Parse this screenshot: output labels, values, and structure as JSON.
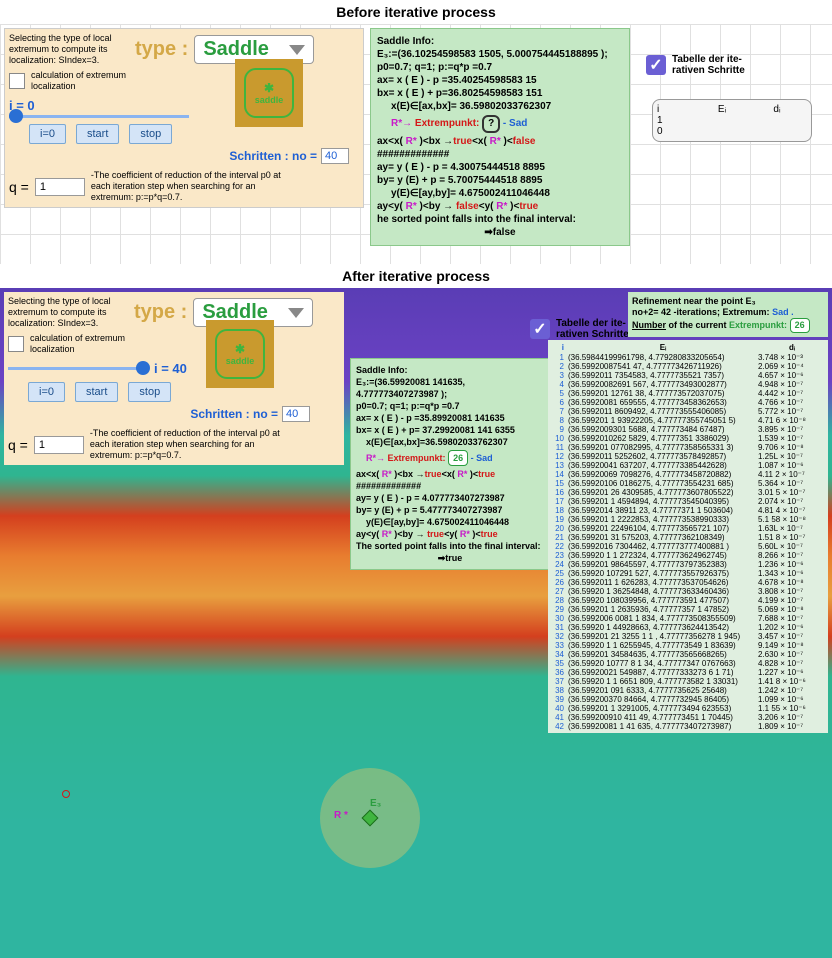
{
  "titles": {
    "before": "Before iterative process",
    "after": "After iterative process"
  },
  "leftPanel": {
    "selectText": "Selecting the type of local extremum to compute its localization: SIndex=3.",
    "typeLabel": "type :",
    "dropdownValue": "Saddle",
    "calcLabel": "calculation of extremum localization",
    "goldLabel": "saddle",
    "iLabelBefore": "i = 0",
    "iLabelAfter": "i = 40",
    "btns": {
      "reset": "i=0",
      "start": "start",
      "stop": "stop"
    },
    "schritten": "Schritten :  no = ",
    "schrittenVal": "40",
    "qLabel": "q = ",
    "qVal": "1",
    "coeffText": "-The coefficient of reduction of the interval p0 at each iteration step when searching for an extremum: p:=p*q=0.7."
  },
  "infoBefore": {
    "l1": "Saddle  Info:",
    "l2": "E₃:=(36.10254598583 1505, 5.000754445188895 );",
    "l3": "p0=0.7;  q=1;    p:=q*p =0.7",
    "l4": "ax= x ( E ) - p =35.40254598583 15",
    "l5": "bx= x ( E ) + p=36.80254598583 151",
    "l6": "x(E)∈[ax,bx]= 36.59802033762307",
    "l7a": "R*→",
    "l7b": "Extrempunkt:",
    "l7q": "?",
    "l7c": "- Sad",
    "l8": "ax<x( R* )<bx →true<x( R* )<false",
    "l9": "#############",
    "l10": "ay= y ( E ) - p = 4.30075444518 8895",
    "l11": "by= y (E) + p = 5.70075444518 8895",
    "l12": "y(E)∈[ay,by]= 4.675002411046448",
    "l13": "ay<y( R* )<by → false<y( R* )<true",
    "l14": "he sorted point falls into the final interval:",
    "l15": "➡false"
  },
  "tabelleLabel": "Tabelle der ite-rativen Schritte",
  "miniTable": {
    "hdr_i": "i",
    "hdr_E": "Eᵢ",
    "hdr_d": "dᵢ",
    "r1": "1",
    "r2": "0"
  },
  "refine": {
    "l1": "Refinement near the point E₃",
    "l2": "no+2=  42 -iterations;  Extremum:",
    "l2b": "Sad .",
    "l3a": "Number",
    "l3b": " of the current   ",
    "l3c": "Extrempunkt:",
    "l3v": "26"
  },
  "infoAfter": {
    "l1": "Saddle  Info:",
    "l2": "E₃:=(36.59920081 141635, 4.777773407273987 );",
    "l3": "p0=0.7;  q=1;    p:=q*p =0.7",
    "l4": "ax= x ( E ) - p =35.89920081 141635",
    "l5": "bx= x ( E ) + p= 37.29920081 141 6355",
    "l6": "x(E)∈[ax,bx]=36.59802033762307",
    "l7a": "R*→",
    "l7b": "Extrempunkt:",
    "l7v": "26",
    "l7c": "- Sad",
    "l8": "ax<x( R* )<bx →true<x( R* )<true",
    "l9": "#############",
    "l10": "ay= y ( E ) - p = 4.077773407273987",
    "l11": "by= y (E) + p = 5.477773407273987",
    "l12": "y(E)∈[ay,by]= 4.675002411046448",
    "l13": "ay<y( R* )<by → true<y( R* )<true",
    "l14": "The sorted point falls into the final interval:",
    "l15": "➡true"
  },
  "table": {
    "hdr_i": "i",
    "hdr_E": "Eᵢ",
    "hdr_d": "dᵢ",
    "rows": [
      {
        "i": 1,
        "e": "(36.59844199961798, 4.779280833205654)",
        "d": "3.748 × 10⁻³"
      },
      {
        "i": 2,
        "e": "(36.59920087541 47, 4.777773426711926)",
        "d": "2.069 × 10⁻⁴"
      },
      {
        "i": 3,
        "e": "(36.5992011 7354583, 4.7777735521 7357)",
        "d": "4.657 × 10⁻⁶"
      },
      {
        "i": 4,
        "e": "(36.59920082691 567, 4.777773493002877)",
        "d": "4.948 × 10⁻⁷"
      },
      {
        "i": 5,
        "e": "(36.599201 12761 38, 4.777773572037075)",
        "d": "4.442 × 10⁻⁷"
      },
      {
        "i": 6,
        "e": "(36.59920081 659555, 4.777773458362653)",
        "d": "4.766 × 10⁻⁷"
      },
      {
        "i": 7,
        "e": "(36.5992011 8609492, 4.777773555406085)",
        "d": "5.772 × 10⁻⁷"
      },
      {
        "i": 8,
        "e": "(36.599201 1 93922205, 4.77777355745051 5)",
        "d": "4.71 6 × 10⁻⁸"
      },
      {
        "i": 9,
        "e": "(36.5992009301 5688, 4.777773484 67487)",
        "d": "3.895 × 10⁻⁷"
      },
      {
        "i": 10,
        "e": "(36.5992010262 5829, 4.77777351 3386029)",
        "d": "1.539 × 10⁻⁷"
      },
      {
        "i": 11,
        "e": "(36.599201 077082995, 4.77777358565331 3)",
        "d": "9.706 × 10⁻⁸"
      },
      {
        "i": 12,
        "e": "(36.5992011 5252602, 4.777773578492857)",
        "d": "1.25L × 10⁻⁷"
      },
      {
        "i": 13,
        "e": "(36.59920041 637207, 4.777773385442628)",
        "d": "1.087 × 10⁻⁶"
      },
      {
        "i": 14,
        "e": "(36.59920069 7098276, 4.777773458720882)",
        "d": "4.11 2 × 10⁻⁷"
      },
      {
        "i": 15,
        "e": "(36.59920106 0186275, 4.777773554231 685)",
        "d": "5.364 × 10⁻⁷"
      },
      {
        "i": 16,
        "e": "(36.599201 26 4309585, 4.777773607805522)",
        "d": "3.01 5 × 10⁻⁷"
      },
      {
        "i": 17,
        "e": "(36.599201 1 4594894, 4.777773545040395)",
        "d": "2.074 × 10⁻⁷"
      },
      {
        "i": 18,
        "e": "(36.5992014 38911 23, 4.77777371 1 503604)",
        "d": "4.81 4 × 10⁻⁷"
      },
      {
        "i": 19,
        "e": "(36.599201 1 2222853, 4.777773538990333)",
        "d": "5.1 58 × 10⁻⁸"
      },
      {
        "i": 20,
        "e": "(36.599201 22496104, 4.777773565721 107)",
        "d": "1.63L × 10⁻⁷"
      },
      {
        "i": 21,
        "e": "(36.599201 31 575203, 4.77777362108349)",
        "d": "1.51 8 × 10⁻⁷"
      },
      {
        "i": 22,
        "e": "(36.5992016 7304462, 4.777773777400881 )",
        "d": "5.60L × 10⁻⁷"
      },
      {
        "i": 23,
        "e": "(36.59920 1 1 272324, 4.777773624962745)",
        "d": "8.266 × 10⁻⁷"
      },
      {
        "i": 24,
        "e": "(36.599201 98645597, 4.777773797352383)",
        "d": "1.236 × 10⁻⁶"
      },
      {
        "i": 25,
        "e": "(36.59920 107291 527, 4.777773557926375)",
        "d": "1.343 × 10⁻⁶"
      },
      {
        "i": 26,
        "e": "(36.5992011 1 626283, 4.777773537054626)",
        "d": "4.678 × 10⁻⁸"
      },
      {
        "i": 27,
        "e": "(36.59920 1 36254848, 4.777773633460436)",
        "d": "3.808 × 10⁻⁷"
      },
      {
        "i": 28,
        "e": "(36.59920 108039956, 4.777773591 477507)",
        "d": "4.199 × 10⁻⁷"
      },
      {
        "i": 29,
        "e": "(36.599201 1 2635936, 4.77777357 1 47852)",
        "d": "5.069 × 10⁻⁸"
      },
      {
        "i": 30,
        "e": "(36.5992006 0081 1 834, 4.777773508355509)",
        "d": "7.688 × 10⁻⁷"
      },
      {
        "i": 31,
        "e": "(36.59920 1 44928663, 4.777773624413542)",
        "d": "1.202 × 10⁻⁶"
      },
      {
        "i": 32,
        "e": "(36.599201 21 3255 1 1 , 4.77777356278 1 945)",
        "d": "3.457 × 10⁻⁷"
      },
      {
        "i": 33,
        "e": "(36.59920 1 1 6255945, 4.777773549 1 83639)",
        "d": "9.149 × 10⁻⁸"
      },
      {
        "i": 34,
        "e": "(36.599201 34584635, 4.777773565668265)",
        "d": "2.630 × 10⁻⁷"
      },
      {
        "i": 35,
        "e": "(36.59920 10777 8 1 34, 4.77777347 0767663)",
        "d": "4.828 × 10⁻⁷"
      },
      {
        "i": 36,
        "e": "(36.59920021 549887, 4.77777333273 6 1 71)",
        "d": "1.227 × 10⁻⁶"
      },
      {
        "i": 37,
        "e": "(36.59920 1 1 6651 809, 4.777773582 1 33031)",
        "d": "1.41 8 × 10⁻⁶"
      },
      {
        "i": 38,
        "e": "(36.599201 091 6333, 4.7777735625 25648)",
        "d": "1.242 × 10⁻⁷"
      },
      {
        "i": 39,
        "e": "(36.599200370 84664, 4.7777732945 86405)",
        "d": "1.099 × 10⁻⁶"
      },
      {
        "i": 40,
        "e": "(36.599201 1 3291005, 4.777773494 623553)",
        "d": "1.1 55 × 10⁻⁶"
      },
      {
        "i": 41,
        "e": "(36.599200910 411 49, 4.777773451 1 70445)",
        "d": "3.206 × 10⁻⁷"
      },
      {
        "i": 42,
        "e": "(36.59920081 1 41 635, 4.777773407273987)",
        "d": "1.809 × 10⁻⁷"
      }
    ]
  },
  "marker": {
    "rstar": "R *",
    "e3": "E₃"
  }
}
